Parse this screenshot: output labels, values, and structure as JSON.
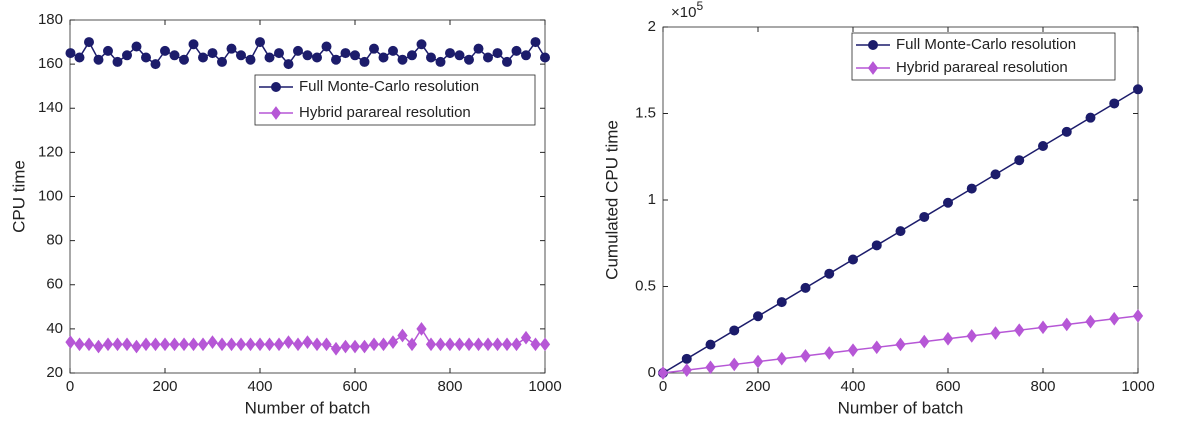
{
  "chart_data": [
    {
      "type": "line",
      "x_label": "Number of batch",
      "y_label": "CPU time",
      "x": [
        1,
        20,
        40,
        60,
        80,
        100,
        120,
        140,
        160,
        180,
        200,
        220,
        240,
        260,
        280,
        300,
        320,
        340,
        360,
        380,
        400,
        420,
        440,
        460,
        480,
        500,
        520,
        540,
        560,
        580,
        600,
        620,
        640,
        660,
        680,
        700,
        720,
        740,
        760,
        780,
        800,
        820,
        840,
        860,
        880,
        900,
        920,
        940,
        960,
        980,
        1000
      ],
      "series": [
        {
          "name": "Full Monte-Carlo resolution",
          "color": "#1c1c6b",
          "marker": "circle",
          "values": [
            165,
            163,
            170,
            162,
            166,
            161,
            164,
            168,
            163,
            160,
            166,
            164,
            162,
            169,
            163,
            165,
            161,
            167,
            164,
            162,
            170,
            163,
            165,
            160,
            166,
            164,
            163,
            168,
            162,
            165,
            164,
            161,
            167,
            163,
            166,
            162,
            164,
            169,
            163,
            161,
            165,
            164,
            162,
            167,
            163,
            165,
            161,
            166,
            164,
            170,
            163
          ]
        },
        {
          "name": "Hybrid parareal resolution",
          "color": "#b657d6",
          "marker": "diamond",
          "values": [
            34,
            33,
            33,
            32,
            33,
            33,
            33,
            32,
            33,
            33,
            33,
            33,
            33,
            33,
            33,
            34,
            33,
            33,
            33,
            33,
            33,
            33,
            33,
            34,
            33,
            34,
            33,
            33,
            31,
            32,
            32,
            32,
            33,
            33,
            34,
            37,
            33,
            40,
            33,
            33,
            33,
            33,
            33,
            33,
            33,
            33,
            33,
            33,
            36,
            33,
            33
          ]
        }
      ],
      "xlim": [
        0,
        1000
      ],
      "xticks": [
        0,
        200,
        400,
        600,
        800,
        1000
      ],
      "ylim": [
        20,
        180
      ],
      "yticks": [
        20,
        40,
        60,
        80,
        100,
        120,
        140,
        160,
        180
      ],
      "grid": false,
      "legend": "upper right"
    },
    {
      "type": "line",
      "x_label": "Number of batch",
      "y_label": "Cumulated CPU time",
      "y_exponent_label": {
        "base": "×10",
        "exponent": "5"
      },
      "x": [
        0,
        50,
        100,
        150,
        200,
        250,
        300,
        350,
        400,
        450,
        500,
        550,
        600,
        650,
        700,
        750,
        800,
        850,
        900,
        950,
        1000
      ],
      "series": [
        {
          "name": "Full Monte-Carlo resolution",
          "color": "#1c1c6b",
          "marker": "circle",
          "values": [
            0,
            8200,
            16400,
            24600,
            32800,
            41000,
            49200,
            57400,
            65600,
            73800,
            82000,
            90200,
            98400,
            106600,
            114800,
            123000,
            131200,
            139400,
            147600,
            155800,
            164000
          ]
        },
        {
          "name": "Hybrid parareal resolution",
          "color": "#b657d6",
          "marker": "diamond",
          "values": [
            0,
            1650,
            3300,
            4950,
            6600,
            8250,
            9900,
            11550,
            13200,
            14850,
            16500,
            18150,
            19800,
            21450,
            23100,
            24750,
            26400,
            28050,
            29700,
            31350,
            33000
          ]
        }
      ],
      "xlim": [
        0,
        1000
      ],
      "xticks": [
        0,
        200,
        400,
        600,
        800,
        1000
      ],
      "ylim": [
        0,
        200000
      ],
      "yticks": [
        {
          "value": 0,
          "label": "0"
        },
        {
          "value": 50000,
          "label": "0.5"
        },
        {
          "value": 100000,
          "label": "1"
        },
        {
          "value": 150000,
          "label": "1.5"
        },
        {
          "value": 200000,
          "label": "2"
        }
      ],
      "grid": false,
      "legend": "upper right"
    }
  ]
}
